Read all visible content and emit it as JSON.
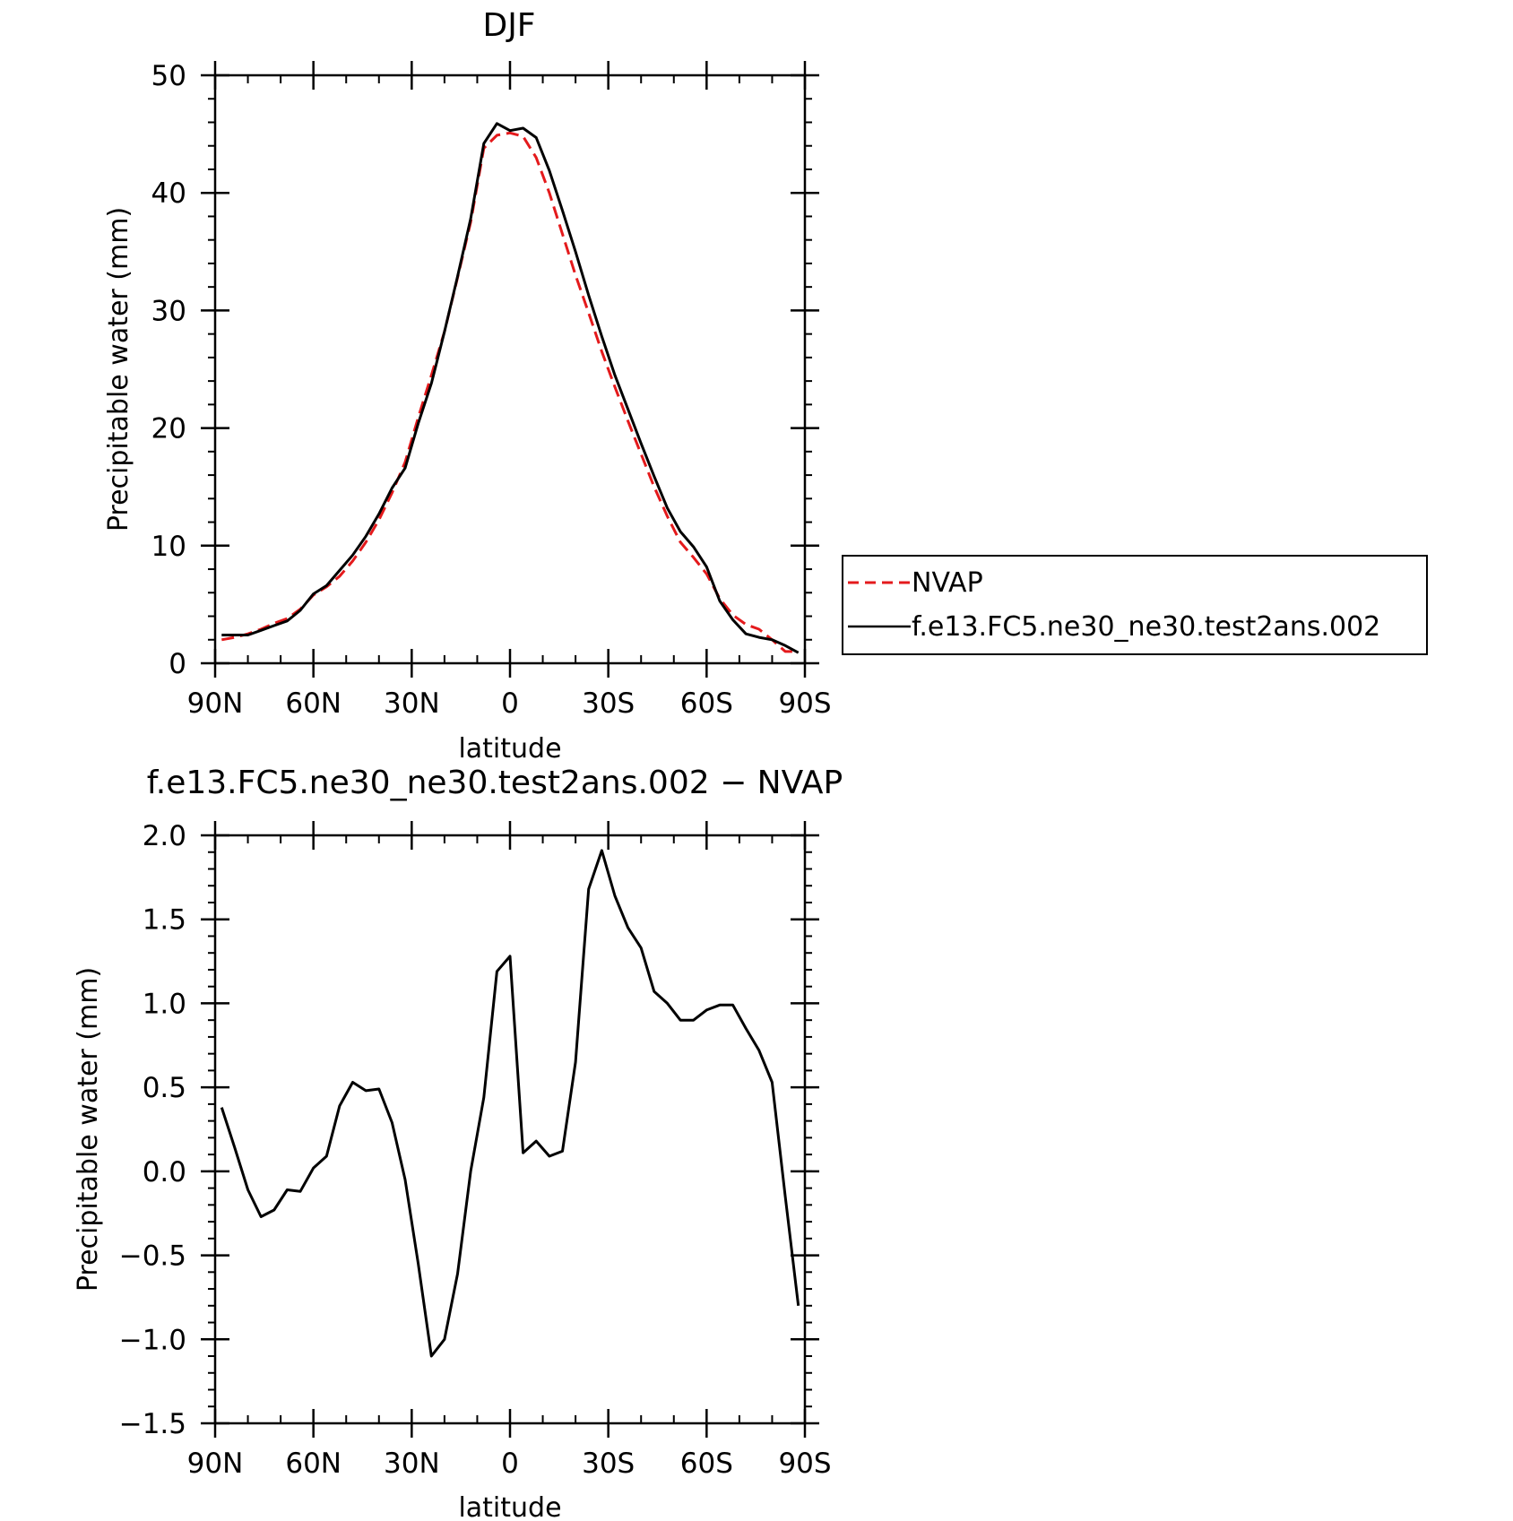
{
  "chart_data": [
    {
      "type": "line",
      "title": "DJF",
      "xlabel": "latitude",
      "ylabel": "Precipitable water (mm)",
      "xlim": [
        90,
        -90
      ],
      "ylim": [
        0,
        50
      ],
      "xticks": [
        90,
        60,
        30,
        0,
        -30,
        -60,
        -90
      ],
      "xtick_labels": [
        "90N",
        "60N",
        "30N",
        "0",
        "30S",
        "60S",
        "90S"
      ],
      "yticks": [
        0,
        10,
        20,
        30,
        40,
        50
      ],
      "ytick_labels": [
        "0",
        "10",
        "20",
        "30",
        "40",
        "50"
      ],
      "legend_position": "right",
      "x": [
        88,
        84,
        80,
        76,
        72,
        68,
        64,
        60,
        56,
        52,
        48,
        44,
        40,
        36,
        32,
        28,
        24,
        20,
        16,
        12,
        8,
        4,
        0,
        -4,
        -8,
        -12,
        -16,
        -20,
        -24,
        -28,
        -32,
        -36,
        -40,
        -44,
        -48,
        -52,
        -56,
        -60,
        -64,
        -68,
        -72,
        -76,
        -80,
        -84,
        -88
      ],
      "series": [
        {
          "name": "NVAP",
          "color": "#e41a1c",
          "dash": true,
          "values": [
            2.0,
            2.2,
            2.5,
            2.9,
            3.4,
            3.8,
            4.6,
            5.8,
            6.5,
            7.4,
            8.7,
            10.3,
            12.2,
            14.5,
            17.1,
            20.9,
            24.5,
            28.2,
            32.8,
            37.5,
            43.8,
            44.9,
            45.1,
            44.8,
            43.0,
            40.0,
            36.5,
            33.0,
            29.8,
            26.5,
            23.5,
            20.6,
            17.8,
            15.0,
            12.5,
            10.3,
            9.0,
            7.6,
            5.5,
            4.1,
            3.3,
            2.9,
            2.0,
            1.0,
            1.0
          ]
        },
        {
          "name": "f.e13.FC5.ne30_ne30.test2ans.002",
          "color": "#000000",
          "dash": false,
          "values": [
            2.4,
            2.4,
            2.4,
            2.8,
            3.2,
            3.6,
            4.5,
            5.9,
            6.6,
            7.9,
            9.2,
            10.8,
            12.7,
            14.9,
            16.6,
            20.4,
            23.8,
            28.2,
            32.9,
            37.8,
            44.2,
            45.9,
            45.3,
            45.5,
            44.7,
            41.9,
            38.5,
            35.0,
            31.3,
            27.8,
            24.5,
            21.6,
            18.7,
            15.9,
            13.2,
            11.2,
            9.9,
            8.2,
            5.3,
            3.7,
            2.5,
            2.2,
            2.0,
            1.5,
            0.9
          ]
        }
      ]
    },
    {
      "type": "line",
      "title": "f.e13.FC5.ne30_ne30.test2ans.002 − NVAP",
      "xlabel": "latitude",
      "ylabel": "Precipitable water (mm)",
      "xlim": [
        90,
        -90
      ],
      "ylim": [
        -1.5,
        2.0
      ],
      "xticks": [
        90,
        60,
        30,
        0,
        -30,
        -60,
        -90
      ],
      "xtick_labels": [
        "90N",
        "60N",
        "30N",
        "0",
        "30S",
        "60S",
        "90S"
      ],
      "yticks": [
        -1.5,
        -1.0,
        -0.5,
        0.0,
        0.5,
        1.0,
        1.5,
        2.0
      ],
      "ytick_labels": [
        "−1.5",
        "−1.0",
        "−0.5",
        "0.0",
        "0.5",
        "1.0",
        "1.5",
        "2.0"
      ],
      "x": [
        88,
        84,
        80,
        76,
        72,
        68,
        64,
        60,
        56,
        52,
        48,
        44,
        40,
        36,
        32,
        28,
        24,
        20,
        16,
        12,
        8,
        4,
        0,
        -4,
        -8,
        -12,
        -16,
        -20,
        -24,
        -28,
        -32,
        -36,
        -40,
        -44,
        -48,
        -52,
        -56,
        -60,
        -64,
        -68,
        -72,
        -76,
        -80,
        -84,
        -88
      ],
      "series": [
        {
          "color": "#000000",
          "dash": false,
          "values": [
            0.38,
            0.14,
            -0.11,
            -0.27,
            -0.23,
            -0.11,
            -0.12,
            0.02,
            0.09,
            0.39,
            0.53,
            0.48,
            0.49,
            0.29,
            -0.05,
            -0.55,
            -1.1,
            -1.0,
            -0.61,
            0.0,
            0.44,
            1.19,
            1.28,
            0.11,
            0.18,
            0.09,
            0.12,
            0.65,
            1.68,
            1.91,
            1.64,
            1.45,
            1.33,
            1.07,
            1.0,
            0.9,
            0.9,
            0.96,
            0.99,
            0.99,
            0.85,
            0.72,
            0.53,
            -0.15,
            -0.8
          ]
        }
      ]
    }
  ]
}
